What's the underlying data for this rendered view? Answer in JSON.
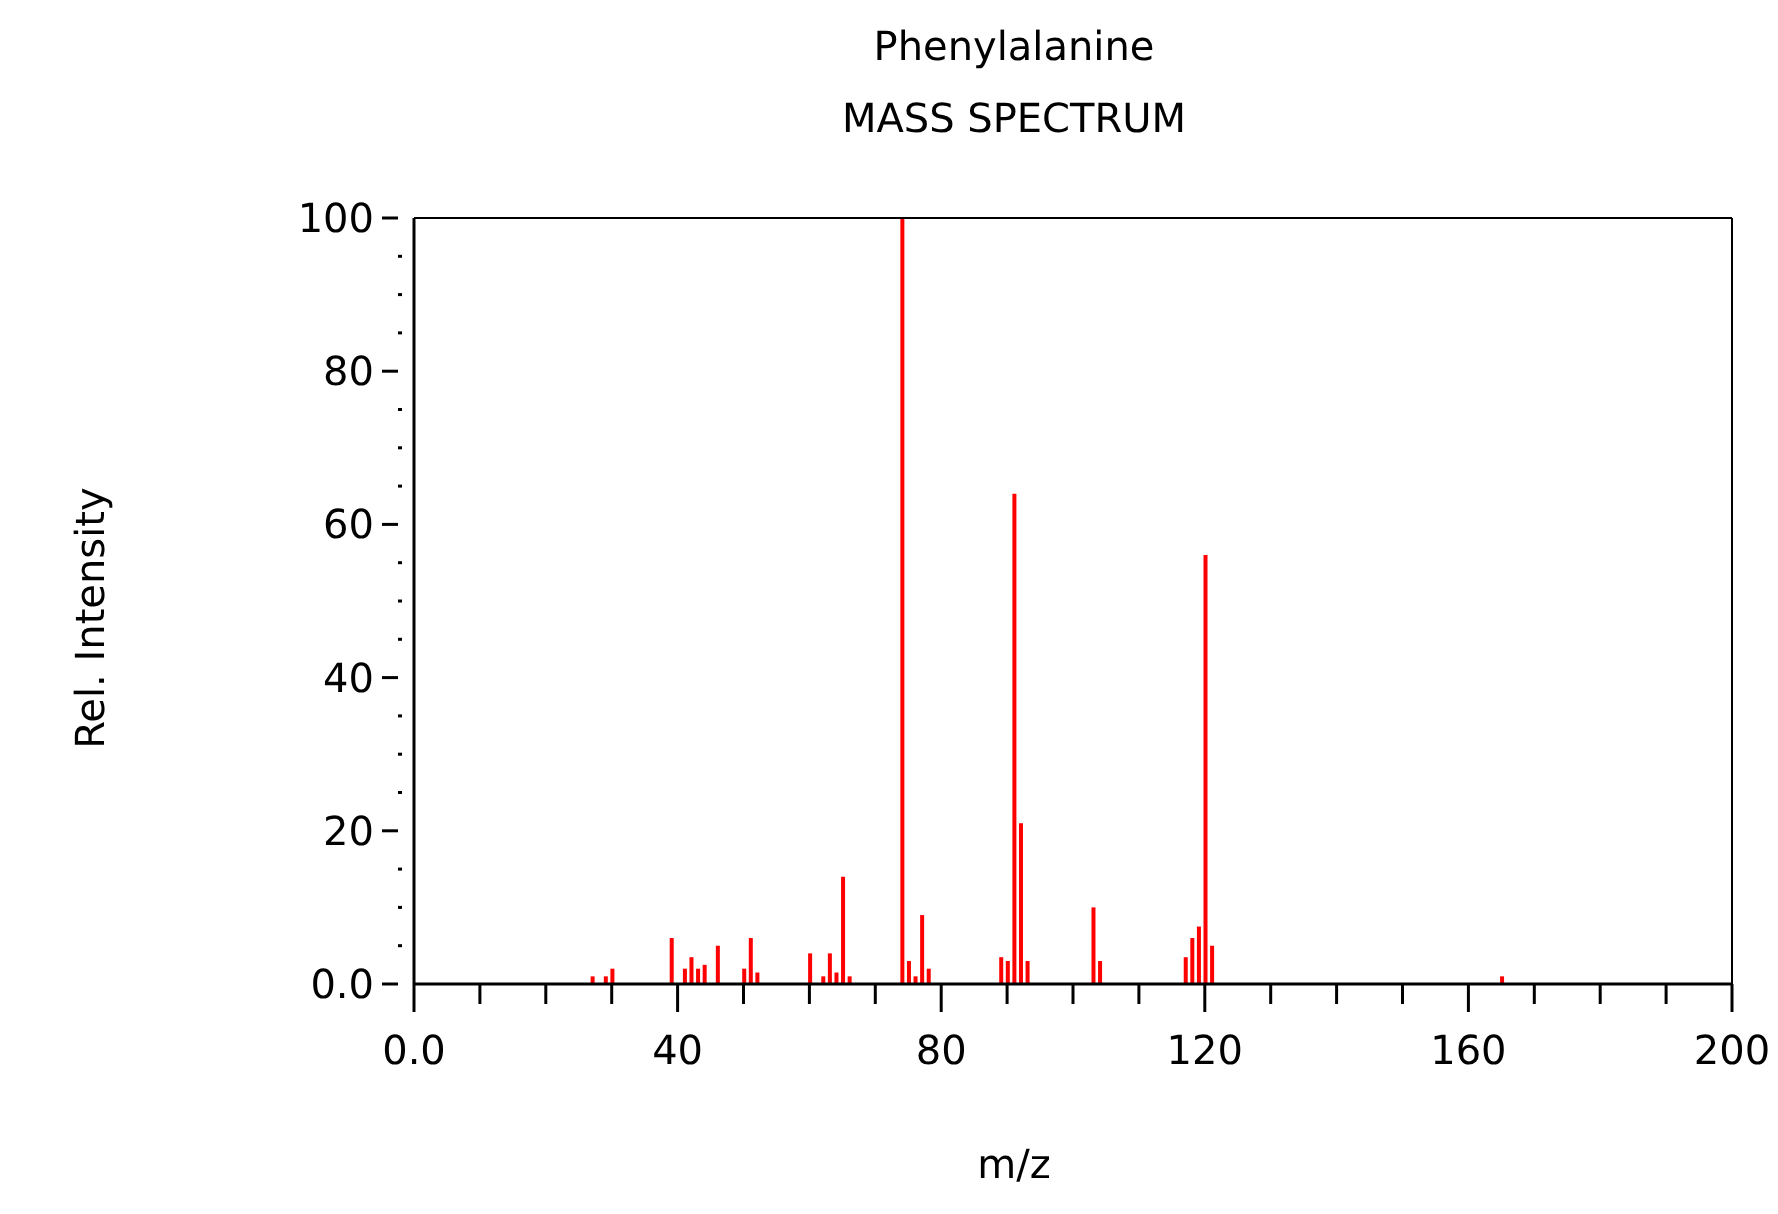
{
  "chart_data": {
    "type": "bar",
    "title": "Phenylalanine",
    "subtitle": "MASS SPECTRUM",
    "xlabel": "m/z",
    "ylabel": "Rel. Intensity",
    "x": [
      27,
      29,
      30,
      39,
      41,
      42,
      43,
      44,
      46,
      50,
      51,
      52,
      60,
      62,
      63,
      64,
      65,
      66,
      74,
      75,
      76,
      77,
      78,
      89,
      90,
      91,
      92,
      93,
      103,
      104,
      117,
      118,
      119,
      120,
      121,
      165
    ],
    "values": [
      1,
      1,
      2,
      6,
      2,
      3.5,
      2,
      2.5,
      5,
      2,
      6,
      1.5,
      4,
      1,
      4,
      1.5,
      14,
      1,
      100,
      3,
      1,
      9,
      2,
      3.5,
      3,
      64,
      21,
      3,
      10,
      3,
      3.5,
      6,
      7.5,
      56,
      5,
      1
    ],
    "color": "#ff0000",
    "xlim": [
      0,
      200
    ],
    "xticks": [
      {
        "value": 0,
        "label": "0.0"
      },
      {
        "value": 10,
        "label": null
      },
      {
        "value": 20,
        "label": null
      },
      {
        "value": 30,
        "label": null
      },
      40,
      {
        "value": 50,
        "label": null
      },
      {
        "value": 60,
        "label": null
      },
      {
        "value": 70,
        "label": null
      },
      80,
      {
        "value": 90,
        "label": null
      },
      {
        "value": 100,
        "label": null
      },
      {
        "value": 110,
        "label": null
      },
      120,
      {
        "value": 130,
        "label": null
      },
      {
        "value": 140,
        "label": null
      },
      {
        "value": 150,
        "label": null
      },
      160,
      {
        "value": 170,
        "label": null
      },
      {
        "value": 180,
        "label": null
      },
      {
        "value": 190,
        "label": null
      },
      200
    ],
    "ylim": [
      0,
      100
    ],
    "yticks": [
      {
        "value": 0,
        "label": "0.0"
      },
      {
        "value": 5,
        "label": null
      },
      {
        "value": 10,
        "label": null
      },
      {
        "value": 15,
        "label": null
      },
      20,
      {
        "value": 25,
        "label": null
      },
      {
        "value": 30,
        "label": null
      },
      {
        "value": 35,
        "label": null
      },
      40,
      {
        "value": 45,
        "label": null
      },
      {
        "value": 50,
        "label": null
      },
      {
        "value": 55,
        "label": null
      },
      60,
      {
        "value": 65,
        "label": null
      },
      {
        "value": 70,
        "label": null
      },
      {
        "value": 75,
        "label": null
      },
      80,
      {
        "value": 85,
        "label": null
      },
      {
        "value": 90,
        "label": null
      },
      {
        "value": 95,
        "label": null
      },
      100
    ]
  }
}
